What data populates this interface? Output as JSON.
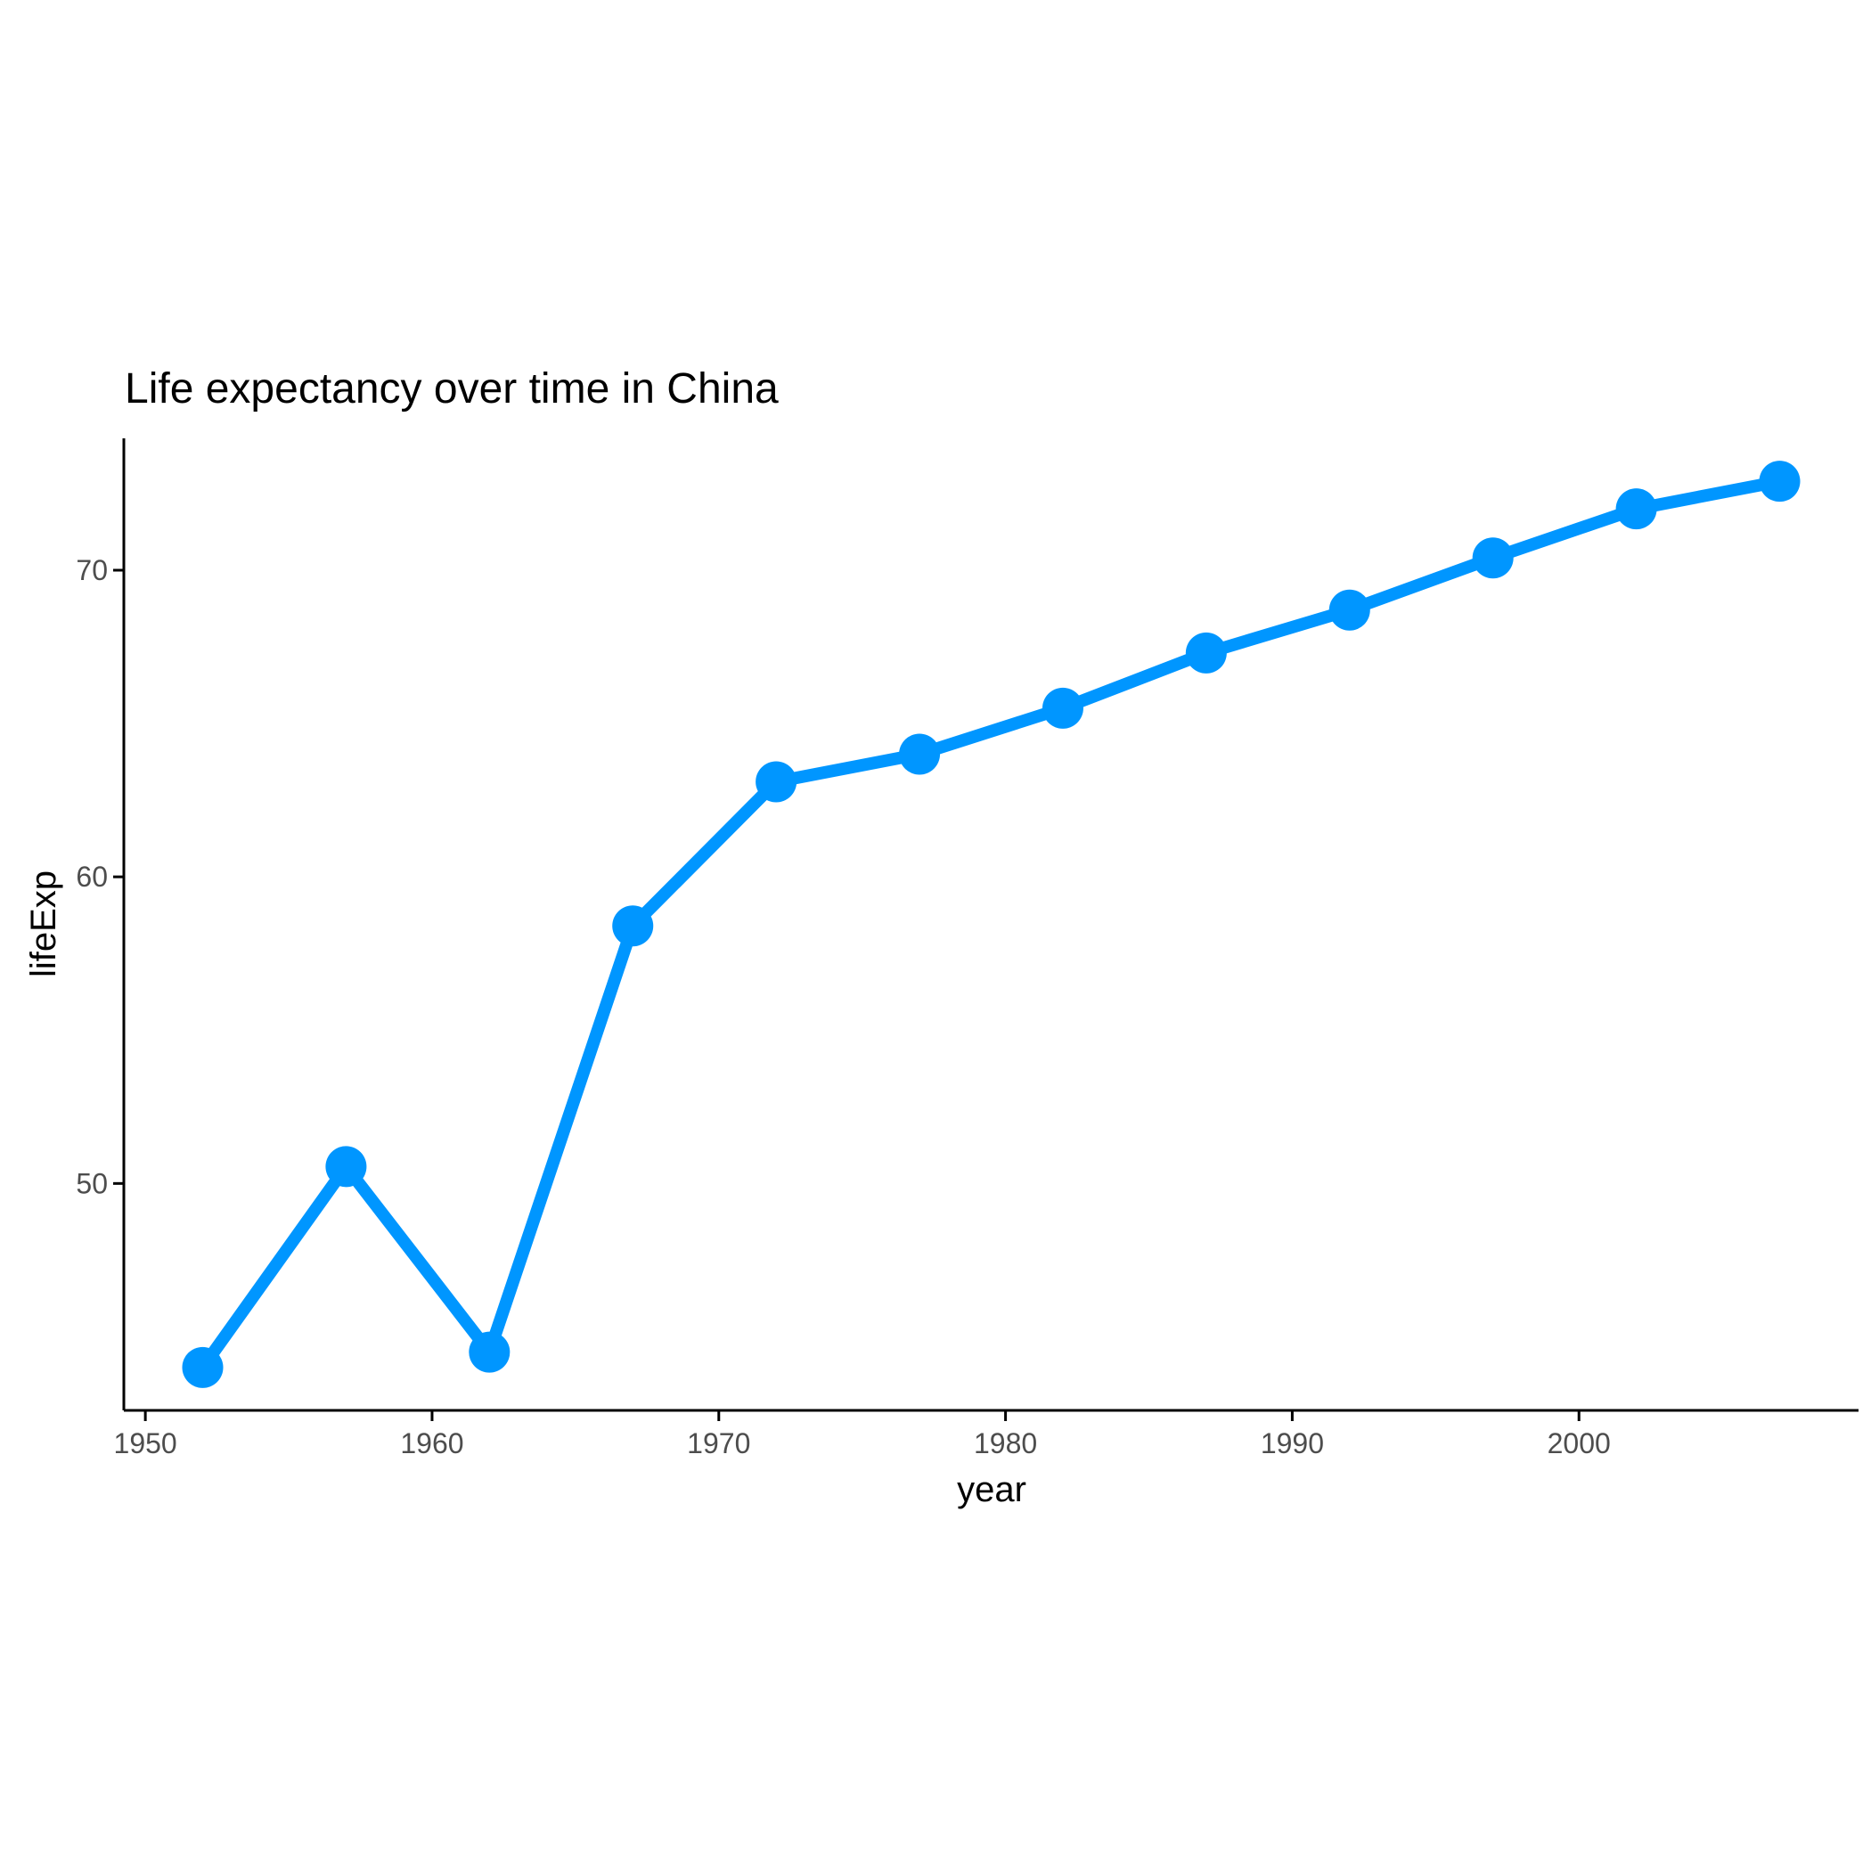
{
  "chart_data": {
    "type": "line",
    "title": "Life expectancy over time in China",
    "xlabel": "year",
    "ylabel": "lifeExp",
    "x": [
      1952,
      1957,
      1962,
      1967,
      1972,
      1977,
      1982,
      1987,
      1992,
      1997,
      2002,
      2007
    ],
    "series": [
      {
        "values": [
          44.0,
          50.55,
          44.5,
          58.4,
          63.1,
          64.0,
          65.5,
          67.3,
          68.7,
          70.4,
          72.0,
          72.9
        ],
        "color": "#0096FF",
        "markers": true
      }
    ],
    "xlim": [
      1949.25,
      2009.75
    ],
    "ylim": [
      42.6,
      74.3
    ],
    "xticks": [
      1950,
      1960,
      1970,
      1980,
      1990,
      2000
    ],
    "yticks": [
      50,
      60,
      70
    ],
    "grid": false,
    "legend": "none"
  }
}
